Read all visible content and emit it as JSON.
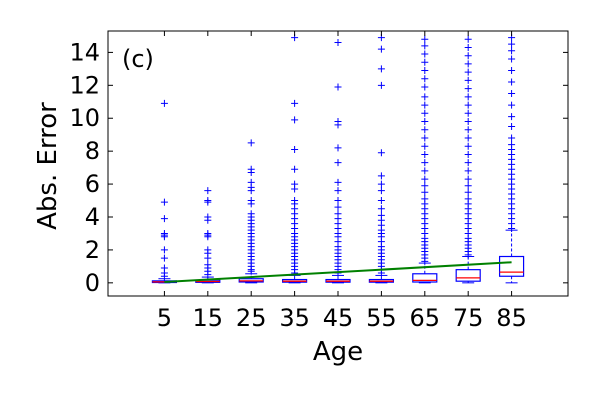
{
  "chart_data": {
    "type": "box",
    "panel_label": "(c)",
    "xlabel": "Age",
    "ylabel": "Abs. Error",
    "categories": [
      "5",
      "15",
      "25",
      "35",
      "45",
      "55",
      "65",
      "75",
      "85"
    ],
    "x": [
      5,
      15,
      25,
      35,
      45,
      55,
      65,
      75,
      85
    ],
    "xlim": [
      -8,
      98
    ],
    "ylim": [
      -0.8,
      15.3
    ],
    "yticks": [
      0,
      2,
      4,
      6,
      8,
      10,
      12,
      14
    ],
    "ytick_labels": [
      "0",
      "2",
      "4",
      "6",
      "8",
      "10",
      "12",
      "14"
    ],
    "boxes": [
      {
        "x": 5,
        "q1": 0.02,
        "median": 0.06,
        "q3": 0.12,
        "whisker_low": 0,
        "whisker_high": 0.25
      },
      {
        "x": 15,
        "q1": 0.03,
        "median": 0.08,
        "q3": 0.16,
        "whisker_low": 0,
        "whisker_high": 0.35
      },
      {
        "x": 25,
        "q1": 0.05,
        "median": 0.12,
        "q3": 0.25,
        "whisker_low": 0,
        "whisker_high": 0.55
      },
      {
        "x": 35,
        "q1": 0.04,
        "median": 0.1,
        "q3": 0.2,
        "whisker_low": 0,
        "whisker_high": 0.45
      },
      {
        "x": 45,
        "q1": 0.04,
        "median": 0.1,
        "q3": 0.2,
        "whisker_low": 0,
        "whisker_high": 0.45
      },
      {
        "x": 55,
        "q1": 0.04,
        "median": 0.1,
        "q3": 0.2,
        "whisker_low": 0,
        "whisker_high": 0.45
      },
      {
        "x": 65,
        "q1": 0.05,
        "median": 0.15,
        "q3": 0.55,
        "whisker_low": 0,
        "whisker_high": 1.2
      },
      {
        "x": 75,
        "q1": 0.1,
        "median": 0.3,
        "q3": 0.8,
        "whisker_low": 0,
        "whisker_high": 1.6
      },
      {
        "x": 85,
        "q1": 0.4,
        "median": 0.65,
        "q3": 1.6,
        "whisker_low": 0,
        "whisker_high": 3.2
      }
    ],
    "outliers": [
      {
        "x": 5,
        "values": [
          0.4,
          0.6,
          0.9,
          1.5,
          2.0,
          2.8,
          2.9,
          3.0,
          3.9,
          4.9,
          10.9
        ]
      },
      {
        "x": 15,
        "values": [
          0.5,
          0.7,
          0.9,
          1.1,
          1.5,
          1.8,
          2.0,
          2.8,
          2.9,
          3.0,
          3.8,
          4.0,
          4.9,
          5.0,
          5.6
        ]
      },
      {
        "x": 25,
        "values": [
          0.7,
          0.8,
          1.0,
          1.2,
          1.4,
          1.6,
          1.8,
          2.0,
          2.2,
          2.4,
          2.6,
          2.8,
          3.0,
          3.2,
          3.4,
          3.6,
          3.8,
          4.0,
          4.2,
          4.8,
          5.0,
          5.6,
          5.8,
          6.1,
          6.7,
          6.9,
          8.5
        ]
      },
      {
        "x": 35,
        "values": [
          0.6,
          0.8,
          1.0,
          1.2,
          1.4,
          1.6,
          1.8,
          2.0,
          2.2,
          2.4,
          2.6,
          2.8,
          3.0,
          3.3,
          3.6,
          3.9,
          4.2,
          4.5,
          4.8,
          5.0,
          5.7,
          6.0,
          6.9,
          8.1,
          9.9,
          10.9,
          14.9
        ]
      },
      {
        "x": 45,
        "values": [
          0.6,
          0.8,
          1.0,
          1.2,
          1.4,
          1.6,
          1.8,
          2.0,
          2.2,
          2.5,
          2.8,
          3.0,
          3.3,
          3.6,
          3.9,
          4.2,
          4.6,
          5.0,
          5.6,
          6.1,
          7.3,
          8.2,
          9.6,
          9.8,
          11.9,
          14.6
        ]
      },
      {
        "x": 55,
        "values": [
          0.6,
          0.8,
          1.0,
          1.2,
          1.4,
          1.6,
          1.8,
          2.0,
          2.2,
          2.5,
          2.8,
          3.0,
          3.2,
          3.5,
          3.8,
          4.1,
          4.5,
          5.0,
          5.6,
          6.0,
          6.5,
          7.9,
          12.0,
          13.0,
          14.2,
          14.9
        ]
      },
      {
        "x": 65,
        "values": [
          1.3,
          1.5,
          1.7,
          1.9,
          2.1,
          2.3,
          2.5,
          2.7,
          3.0,
          3.3,
          3.6,
          3.9,
          4.2,
          4.5,
          4.8,
          5.1,
          5.5,
          5.9,
          6.3,
          6.8,
          7.3,
          7.8,
          8.3,
          8.8,
          9.3,
          9.8,
          10.3,
          10.8,
          11.3,
          11.9,
          12.4,
          12.9,
          13.4,
          13.9,
          14.4,
          14.8
        ]
      },
      {
        "x": 75,
        "values": [
          1.7,
          1.9,
          2.1,
          2.3,
          2.5,
          2.7,
          3.0,
          3.3,
          3.6,
          3.9,
          4.2,
          4.5,
          4.8,
          5.1,
          5.5,
          5.9,
          6.3,
          6.8,
          7.3,
          7.8,
          8.3,
          8.8,
          9.3,
          9.8,
          10.3,
          10.8,
          11.3,
          11.8,
          12.3,
          12.8,
          13.3,
          13.8,
          14.3,
          14.8
        ]
      },
      {
        "x": 85,
        "values": [
          3.3,
          3.6,
          3.9,
          4.2,
          4.5,
          4.8,
          5.1,
          5.4,
          5.7,
          6.0,
          6.3,
          6.6,
          6.9,
          7.2,
          7.5,
          7.8,
          8.1,
          8.4,
          8.8,
          9.5,
          10.1,
          10.8,
          11.5,
          12.2,
          12.9,
          13.6,
          14.1,
          14.5,
          14.9
        ]
      }
    ],
    "trend_line": {
      "x": [
        5,
        85
      ],
      "y": [
        0.05,
        1.25
      ],
      "color": "#008000"
    },
    "colors": {
      "box": "#0000ff",
      "whisker": "#0000ff",
      "median": "#ff0000",
      "outlier": "#0000ff",
      "axes": "#000000"
    },
    "grid": false
  }
}
